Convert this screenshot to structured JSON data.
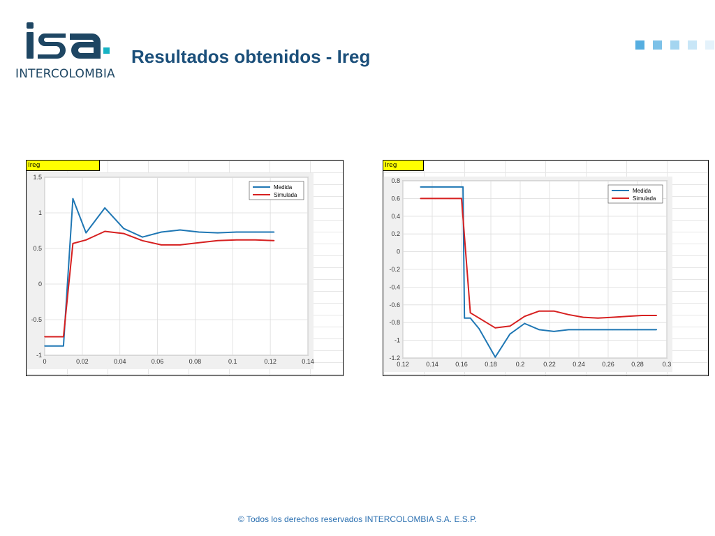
{
  "header": {
    "logo_text": "INTERCOLOMBIA",
    "title": "Resultados obtenidos - Ireg"
  },
  "colors": {
    "brand": "#1e4663",
    "logo_dot": "#17b3c4",
    "title": "#1b4f7a",
    "tag_yellow": "#ffff00",
    "measured": "#1f77b4",
    "simulated": "#d62020",
    "squares": [
      "#56aee0",
      "#7cc1e8",
      "#a4d5f0",
      "#c8e6f7",
      "#e4f2fb"
    ]
  },
  "footer": {
    "text": "© Todos los derechos reservados INTERCOLOMBIA S.A. E.S.P."
  },
  "chart_data": [
    {
      "type": "line",
      "tag": "Ireg",
      "xlim": [
        0,
        0.14
      ],
      "ylim": [
        -1,
        1.5
      ],
      "x_ticks": [
        0,
        0.02,
        0.04,
        0.06,
        0.08,
        0.1,
        0.12,
        0.14
      ],
      "x_tick_labels": [
        "0",
        "0.02",
        "0.04",
        "0.06",
        "0.08",
        "0.1",
        "0.12",
        "0.14"
      ],
      "y_ticks": [
        1.5,
        1,
        0.5,
        0,
        -0.5,
        -1
      ],
      "y_tick_labels": [
        "1.5",
        "1",
        "0.5",
        "0",
        "-0.5",
        "-1"
      ],
      "grid": true,
      "legend_position": "top-right",
      "series": [
        {
          "name": "Medida",
          "color": "#1f77b4",
          "x": [
            0,
            0.01,
            0.015,
            0.022,
            0.032,
            0.042,
            0.052,
            0.062,
            0.072,
            0.082,
            0.092,
            0.102,
            0.112,
            0.122
          ],
          "y": [
            -0.87,
            -0.87,
            1.2,
            0.72,
            1.07,
            0.78,
            0.66,
            0.73,
            0.76,
            0.73,
            0.72,
            0.73,
            0.73,
            0.73
          ]
        },
        {
          "name": "Simulada",
          "color": "#d62020",
          "x": [
            0,
            0.01,
            0.015,
            0.022,
            0.032,
            0.042,
            0.052,
            0.062,
            0.072,
            0.082,
            0.092,
            0.102,
            0.112,
            0.122
          ],
          "y": [
            -0.74,
            -0.74,
            0.57,
            0.62,
            0.74,
            0.71,
            0.61,
            0.55,
            0.55,
            0.58,
            0.61,
            0.62,
            0.62,
            0.61
          ]
        }
      ]
    },
    {
      "type": "line",
      "tag": "Ireg",
      "xlim": [
        0.12,
        0.3
      ],
      "ylim": [
        -1.2,
        0.8
      ],
      "x_ticks": [
        0.12,
        0.14,
        0.16,
        0.18,
        0.2,
        0.22,
        0.24,
        0.26,
        0.28,
        0.3
      ],
      "x_tick_labels": [
        "0.12",
        "0.14",
        "0.16",
        "0.18",
        "0.2",
        "0.22",
        "0.24",
        "0.26",
        "0.28",
        "0.3"
      ],
      "y_ticks": [
        0.8,
        0.6,
        0.4,
        0.2,
        0,
        -0.2,
        -0.4,
        -0.6,
        -0.8,
        -1,
        -1.2
      ],
      "y_tick_labels": [
        "0.8",
        "0.6",
        "0.4",
        "0.2",
        "0",
        "-0.2",
        "-0.4",
        "-0.6",
        "-0.8",
        "-1",
        "-1.2"
      ],
      "grid": true,
      "legend_position": "top-right",
      "series": [
        {
          "name": "Medida",
          "color": "#1f77b4",
          "x": [
            0.132,
            0.16,
            0.161,
            0.162,
            0.166,
            0.172,
            0.183,
            0.193,
            0.203,
            0.213,
            0.223,
            0.233,
            0.243,
            0.253,
            0.263,
            0.273,
            0.283,
            0.293
          ],
          "y": [
            0.73,
            0.73,
            0.73,
            -0.75,
            -0.75,
            -0.87,
            -1.19,
            -0.93,
            -0.81,
            -0.88,
            -0.9,
            -0.88,
            -0.88,
            -0.88,
            -0.88,
            -0.88,
            -0.88,
            -0.88
          ]
        },
        {
          "name": "Simulada",
          "color": "#d62020",
          "x": [
            0.132,
            0.142,
            0.152,
            0.16,
            0.166,
            0.172,
            0.183,
            0.193,
            0.203,
            0.213,
            0.223,
            0.233,
            0.243,
            0.253,
            0.263,
            0.273,
            0.283,
            0.293
          ],
          "y": [
            0.6,
            0.6,
            0.6,
            0.6,
            -0.69,
            -0.75,
            -0.86,
            -0.84,
            -0.73,
            -0.67,
            -0.67,
            -0.71,
            -0.74,
            -0.75,
            -0.74,
            -0.73,
            -0.72,
            -0.72
          ]
        }
      ]
    }
  ]
}
